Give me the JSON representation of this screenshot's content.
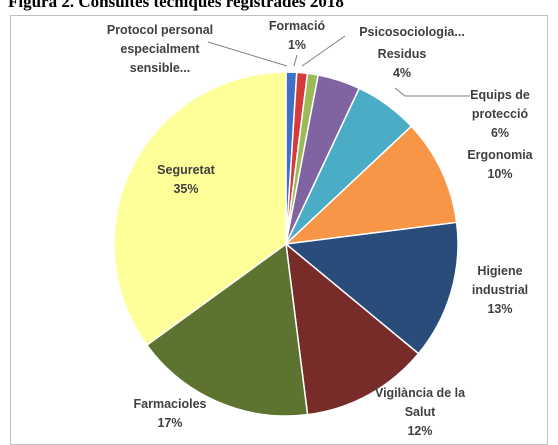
{
  "chart_data": {
    "type": "pie",
    "title": "Figura 2. Consultes tècniques registrades 2018",
    "categories": [
      "Protocol personal especialment sensible...",
      "Formació",
      "Psicosociologia...",
      "Residus",
      "Equips de protecció",
      "Ergonomia",
      "Higiene industrial",
      "Vigilància de la Salut",
      "Farmacioles",
      "Seguretat"
    ],
    "values": [
      1,
      1,
      1,
      4,
      6,
      10,
      13,
      12,
      17,
      35
    ],
    "value_labels": [
      null,
      "1%",
      null,
      "4%",
      "6%",
      "10%",
      "13%",
      "12%",
      "17%",
      "35%"
    ],
    "colors": [
      "#3f6fc6",
      "#d63b3b",
      "#9bbb59",
      "#8064a2",
      "#4bacc6",
      "#f79646",
      "#2a4c7a",
      "#772c2a",
      "#5d7330",
      "#ffff99"
    ]
  }
}
